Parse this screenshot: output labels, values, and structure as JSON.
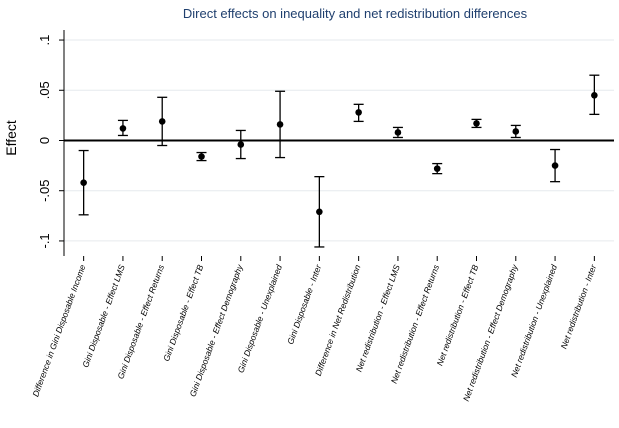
{
  "chart_data": {
    "type": "scatter",
    "title": "Direct effects on inequality and net redistribution differences",
    "ylabel": "Effect",
    "xlabel": "",
    "ylim": [
      -0.115,
      0.11
    ],
    "yticks": [
      0.1,
      0.05,
      0,
      -0.05,
      -0.1
    ],
    "ytick_labels": [
      ".1",
      ".05",
      "0",
      "-.05",
      "-.1"
    ],
    "grid": true,
    "reference_line": 0,
    "categories": [
      "Difference in Gini Disposable Income",
      "Gini Disposable - Effect LMS",
      "Gini Disposable - Effect Returns",
      "Gini Disposable - Effect TB",
      "Gini Disposable - Effect Demography",
      "Gini Disposable - Unexplained",
      "Gini Disposable - Inter",
      "Difference in Net Redistribution",
      "Net redistribution - Effect LMS",
      "Net redistribution - Effect Returns",
      "Net redistribution - Effect TB",
      "Net redistribution - Effect Demography",
      "Net redistribution - Unexplained",
      "Net redistribution - Inter"
    ],
    "estimates": [
      -0.042,
      0.012,
      0.019,
      -0.016,
      -0.004,
      0.016,
      -0.071,
      0.028,
      0.008,
      -0.028,
      0.017,
      0.009,
      -0.025,
      0.045
    ],
    "ci_low": [
      -0.074,
      0.005,
      -0.005,
      -0.02,
      -0.018,
      -0.017,
      -0.106,
      0.019,
      0.003,
      -0.033,
      0.013,
      0.003,
      -0.041,
      0.026
    ],
    "ci_high": [
      -0.01,
      0.02,
      0.043,
      -0.012,
      0.01,
      0.049,
      -0.036,
      0.036,
      0.013,
      -0.023,
      0.021,
      0.015,
      -0.009,
      0.065
    ]
  }
}
